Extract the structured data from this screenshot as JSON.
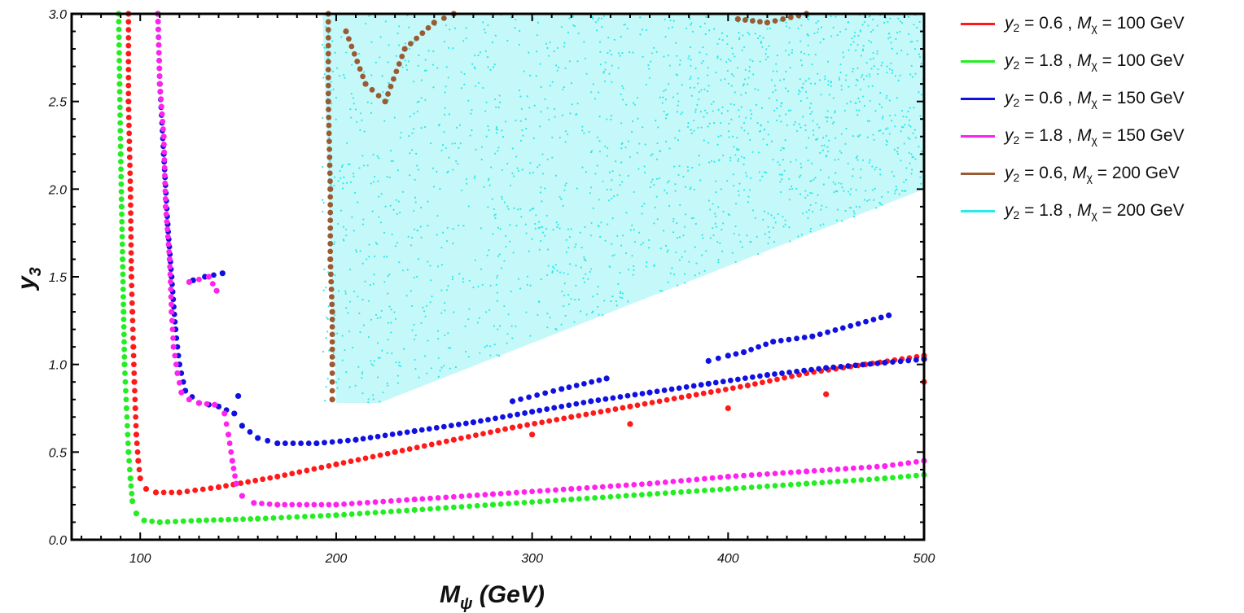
{
  "chart_data": {
    "type": "scatter",
    "xlabel_main": "M",
    "xlabel_sub": "ψ",
    "xlabel_rest": " (GeV)",
    "ylabel_main": "y",
    "ylabel_sub": "3",
    "xlim": [
      65,
      500
    ],
    "ylim": [
      0,
      3.0
    ],
    "x_ticks": [
      100,
      200,
      300,
      400,
      500
    ],
    "y_ticks": [
      0.0,
      0.5,
      1.0,
      1.5,
      2.0,
      2.5,
      3.0
    ],
    "x_tick_labels": [
      "100",
      "200",
      "300",
      "400",
      "500"
    ],
    "y_tick_labels": [
      "0.0",
      "0.5",
      "1.0",
      "1.5",
      "2.0",
      "2.5",
      "3.0"
    ],
    "grid": false,
    "legend_position": "outside-right",
    "series": [
      {
        "name": "y2 = 0.6 , Mχ = 100 GeV",
        "color": "#ff1a1a",
        "points": [
          [
            94,
            3.0
          ],
          [
            94,
            2.5
          ],
          [
            95,
            2.0
          ],
          [
            95.5,
            1.5
          ],
          [
            96,
            1.3
          ],
          [
            96.5,
            1.1
          ],
          [
            97,
            0.9
          ],
          [
            97.5,
            0.75
          ],
          [
            98,
            0.6
          ],
          [
            99,
            0.45
          ],
          [
            100,
            0.35
          ],
          [
            103,
            0.29
          ],
          [
            108,
            0.27
          ],
          [
            120,
            0.27
          ],
          [
            140,
            0.3
          ],
          [
            170,
            0.36
          ],
          [
            200,
            0.43
          ],
          [
            230,
            0.5
          ],
          [
            260,
            0.57
          ],
          [
            290,
            0.64
          ],
          [
            320,
            0.7
          ],
          [
            350,
            0.76
          ],
          [
            380,
            0.82
          ],
          [
            410,
            0.88
          ],
          [
            440,
            0.95
          ],
          [
            470,
            1.0
          ],
          [
            500,
            1.05
          ],
          [
            300,
            0.6
          ],
          [
            350,
            0.66
          ],
          [
            400,
            0.75
          ],
          [
            450,
            0.83
          ],
          [
            500,
            0.9
          ]
        ]
      },
      {
        "name": "y2 = 1.8 , Mχ = 100 GeV",
        "color": "#22ee22",
        "points": [
          [
            89,
            3.0
          ],
          [
            89.5,
            2.6
          ],
          [
            90,
            2.2
          ],
          [
            90.5,
            1.9
          ],
          [
            91,
            1.6
          ],
          [
            91.5,
            1.3
          ],
          [
            92,
            1.0
          ],
          [
            93,
            0.75
          ],
          [
            94,
            0.5
          ],
          [
            95,
            0.35
          ],
          [
            96,
            0.22
          ],
          [
            98,
            0.15
          ],
          [
            102,
            0.11
          ],
          [
            110,
            0.1
          ],
          [
            130,
            0.11
          ],
          [
            160,
            0.12
          ],
          [
            200,
            0.14
          ],
          [
            240,
            0.17
          ],
          [
            280,
            0.2
          ],
          [
            320,
            0.23
          ],
          [
            360,
            0.26
          ],
          [
            400,
            0.29
          ],
          [
            440,
            0.32
          ],
          [
            480,
            0.35
          ],
          [
            500,
            0.37
          ]
        ]
      },
      {
        "name": "y2 = 0.6 , Mχ = 150 GeV",
        "color": "#1010e0",
        "points": [
          [
            109,
            3.0
          ],
          [
            110,
            2.6
          ],
          [
            112,
            2.2
          ],
          [
            114,
            1.8
          ],
          [
            116,
            1.5
          ],
          [
            118,
            1.2
          ],
          [
            120,
            1.0
          ],
          [
            123,
            0.85
          ],
          [
            130,
            0.78
          ],
          [
            140,
            0.76
          ],
          [
            148,
            0.72
          ],
          [
            152,
            0.65
          ],
          [
            160,
            0.58
          ],
          [
            170,
            0.55
          ],
          [
            190,
            0.55
          ],
          [
            210,
            0.57
          ],
          [
            240,
            0.62
          ],
          [
            270,
            0.67
          ],
          [
            300,
            0.73
          ],
          [
            330,
            0.79
          ],
          [
            360,
            0.84
          ],
          [
            390,
            0.89
          ],
          [
            420,
            0.94
          ],
          [
            450,
            0.98
          ],
          [
            480,
            1.01
          ],
          [
            500,
            1.03
          ],
          [
            127,
            1.48
          ],
          [
            133,
            1.5
          ],
          [
            142,
            1.52
          ],
          [
            150,
            0.82
          ],
          [
            290,
            0.79
          ],
          [
            315,
            0.86
          ],
          [
            338,
            0.92
          ],
          [
            390,
            1.02
          ],
          [
            400,
            1.05
          ],
          [
            408,
            1.07
          ],
          [
            423,
            1.13
          ],
          [
            443,
            1.16
          ],
          [
            482,
            1.28
          ]
        ]
      },
      {
        "name": "y2 = 1.8 , Mχ = 150 GeV",
        "color": "#ff22ee",
        "points": [
          [
            109,
            3.0
          ],
          [
            110,
            2.6
          ],
          [
            112,
            2.3
          ],
          [
            113,
            1.9
          ],
          [
            115,
            1.6
          ],
          [
            116,
            1.3
          ],
          [
            117,
            1.1
          ],
          [
            119,
            0.95
          ],
          [
            121,
            0.84
          ],
          [
            125,
            0.8
          ],
          [
            130,
            0.78
          ],
          [
            138,
            0.77
          ],
          [
            143,
            0.72
          ],
          [
            145,
            0.6
          ],
          [
            147,
            0.45
          ],
          [
            149,
            0.32
          ],
          [
            152,
            0.25
          ],
          [
            158,
            0.21
          ],
          [
            170,
            0.2
          ],
          [
            200,
            0.2
          ],
          [
            240,
            0.23
          ],
          [
            280,
            0.26
          ],
          [
            320,
            0.29
          ],
          [
            360,
            0.32
          ],
          [
            400,
            0.36
          ],
          [
            440,
            0.39
          ],
          [
            480,
            0.42
          ],
          [
            500,
            0.45
          ],
          [
            125,
            1.47
          ],
          [
            135,
            1.5
          ],
          [
            139,
            1.42
          ]
        ]
      },
      {
        "name": "y2 = 0.6, Mχ = 200 GeV",
        "color": "#9a5a33",
        "points": [
          [
            196,
            3.0
          ],
          [
            196,
            2.5
          ],
          [
            197,
            2.0
          ],
          [
            197,
            1.6
          ],
          [
            198,
            1.3
          ],
          [
            198,
            1.0
          ],
          [
            198,
            0.8
          ],
          [
            205,
            2.9
          ],
          [
            215,
            2.6
          ],
          [
            225,
            2.5
          ],
          [
            235,
            2.8
          ],
          [
            250,
            2.95
          ],
          [
            260,
            3.0
          ],
          [
            405,
            2.97
          ],
          [
            420,
            2.95
          ],
          [
            440,
            3.0
          ]
        ]
      },
      {
        "name": "y2 = 1.8 , Mχ = 200 GeV",
        "color": "#2ee8e8",
        "region": [
          [
            193,
            3.0
          ],
          [
            500,
            3.0
          ],
          [
            500,
            2.0
          ],
          [
            222,
            0.78
          ],
          [
            200,
            0.78
          ],
          [
            193,
            3.0
          ]
        ]
      }
    ]
  },
  "legend": [
    {
      "y_sym": "y",
      "y_sub": "2",
      "eq": " = 0.6 , ",
      "m_sym": "M",
      "m_sub": "χ",
      "rest": " = 100 GeV",
      "color": "#ff1a1a"
    },
    {
      "y_sym": "y",
      "y_sub": "2",
      "eq": " = 1.8 , ",
      "m_sym": "M",
      "m_sub": "χ",
      "rest": " = 100 GeV",
      "color": "#22ee22"
    },
    {
      "y_sym": "y",
      "y_sub": "2",
      "eq": " = 0.6 , ",
      "m_sym": "M",
      "m_sub": "χ",
      "rest": " = 150 GeV",
      "color": "#1010e0"
    },
    {
      "y_sym": "y",
      "y_sub": "2",
      "eq": " = 1.8 , ",
      "m_sym": "M",
      "m_sub": "χ",
      "rest": " = 150 GeV",
      "color": "#ff22ee"
    },
    {
      "y_sym": "y",
      "y_sub": "2",
      "eq": " = 0.6, ",
      "m_sym": "M",
      "m_sub": "χ",
      "rest": " = 200 GeV",
      "color": "#9a5a33"
    },
    {
      "y_sym": "y",
      "y_sub": "2",
      "eq": " = 1.8 , ",
      "m_sym": "M",
      "m_sub": "χ",
      "rest": " = 200 GeV",
      "color": "#2ee8e8"
    }
  ]
}
